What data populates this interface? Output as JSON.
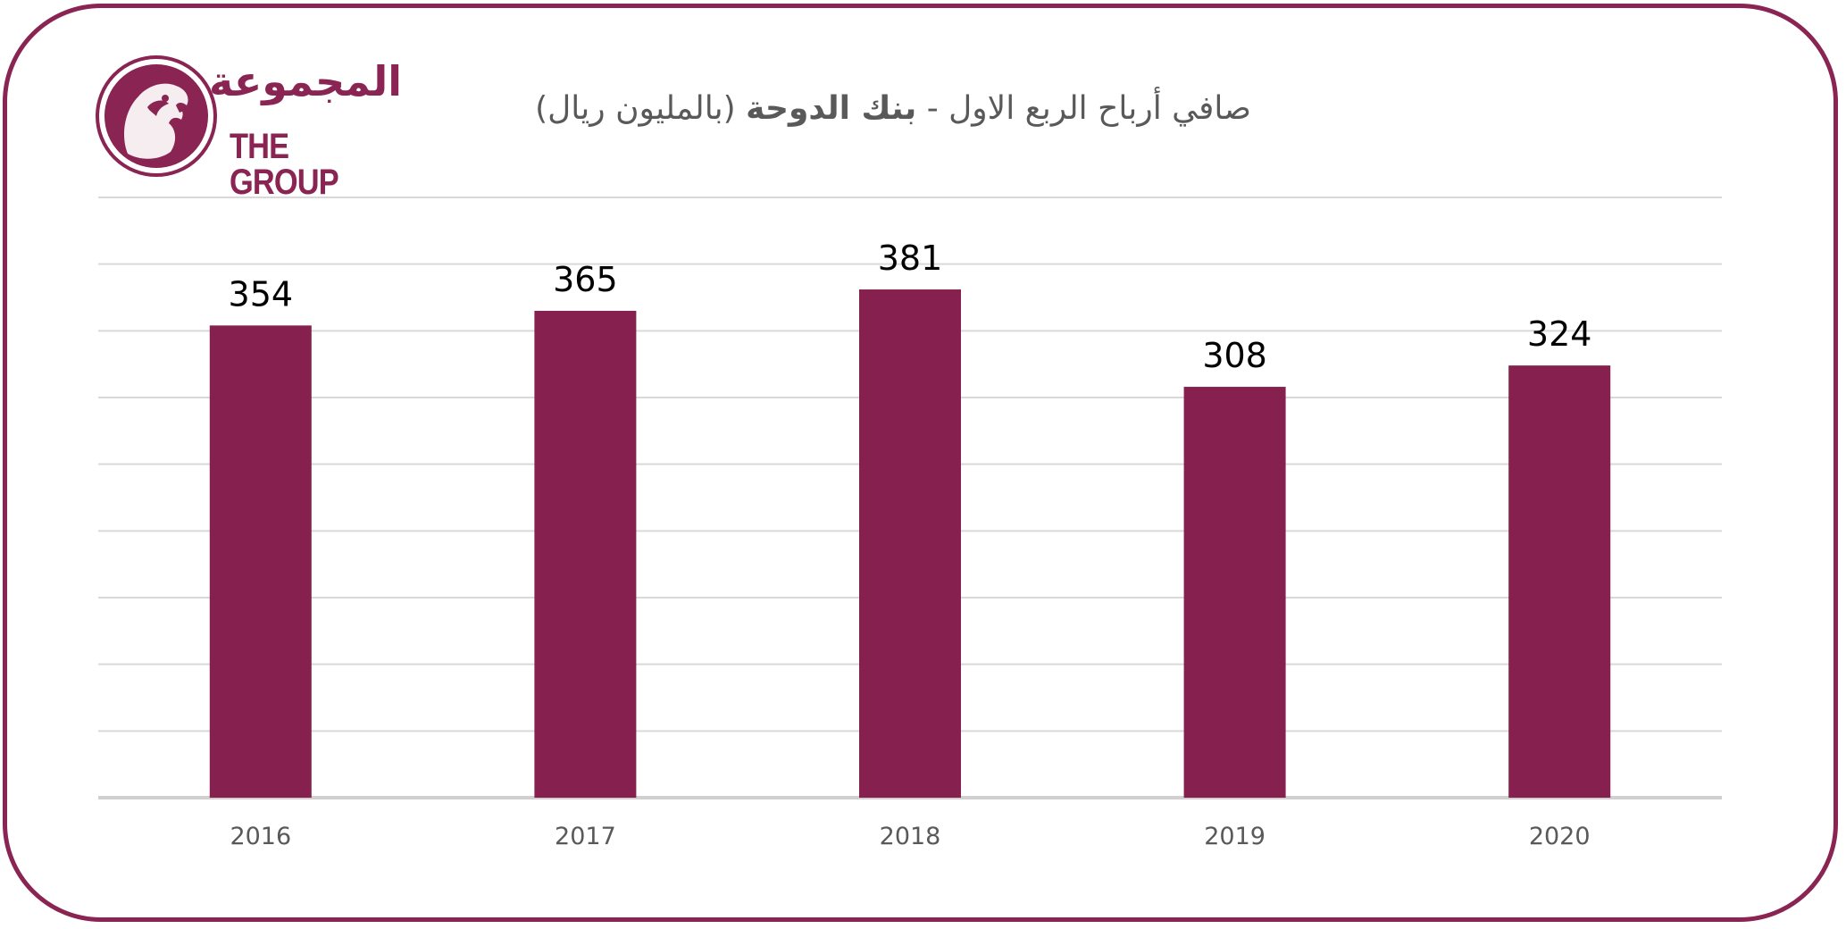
{
  "brand": {
    "name_ar": "المجموعة",
    "name_en": "THE GROUP",
    "color": "#8a2452"
  },
  "chart_data": {
    "type": "bar",
    "title": "صافي أرباح الربع الاول - بنك الدوحة (بالمليون ريال)",
    "title_parts": {
      "before": "صافي أرباح الربع الاول - ",
      "bold": "بنك الدوحة",
      "after": " (بالمليون ريال)"
    },
    "categories": [
      "2016",
      "2017",
      "2018",
      "2019",
      "2020"
    ],
    "values": [
      354,
      365,
      381,
      308,
      324
    ],
    "data_labels": [
      "354",
      "365",
      "381",
      "308",
      "324"
    ],
    "ylim": [
      0,
      450
    ],
    "gridlines": [
      50,
      100,
      150,
      200,
      250,
      300,
      350,
      400,
      450
    ],
    "grid": true,
    "y_tick_labels_shown": false,
    "bar_color": "#85204f",
    "grid_color": "#d9d9d9",
    "axis_color": "#d0d0d0",
    "label_color": "#000000",
    "tick_color": "#595959"
  }
}
